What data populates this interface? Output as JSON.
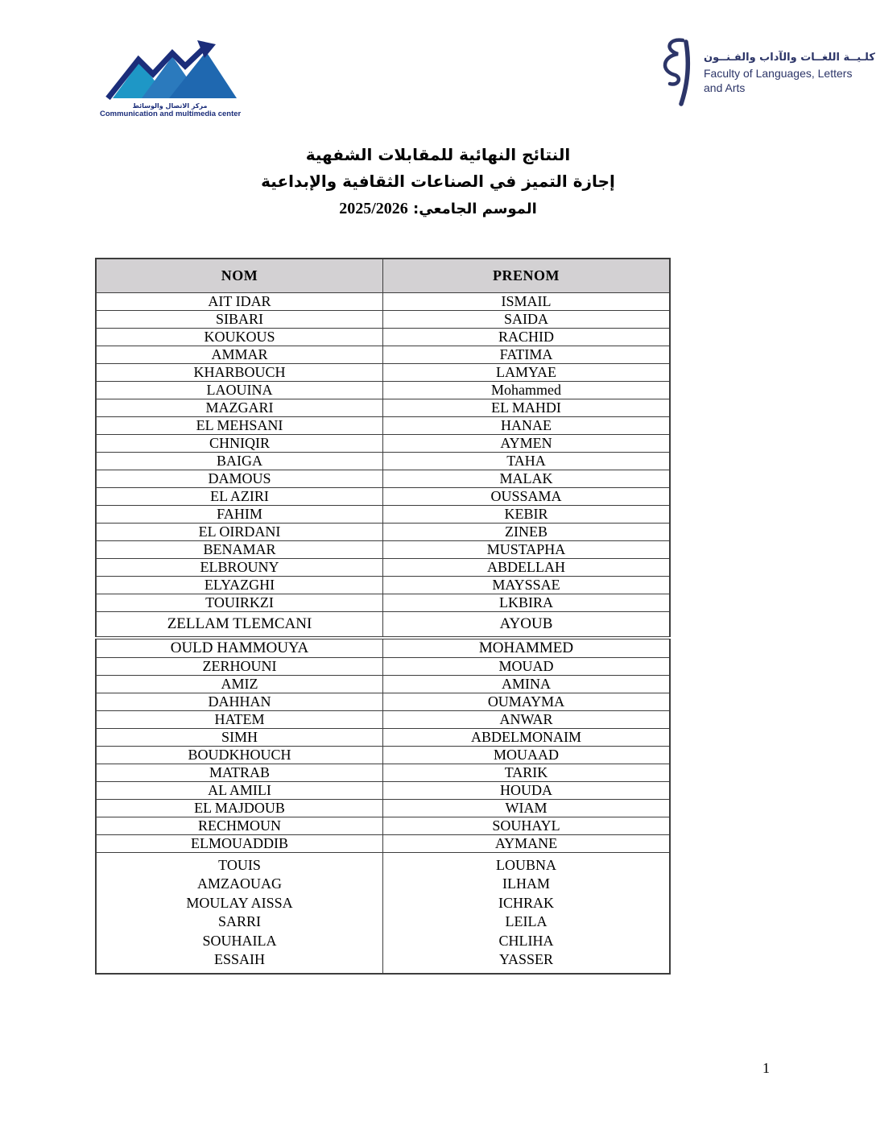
{
  "header": {
    "left_logo": {
      "arabic": "مركز الاتصال والوسائط",
      "english": "Communication and multimedia center",
      "colors": {
        "mountain_left": "#1e97c6",
        "mountain_mid": "#2b7abd",
        "mountain_right": "#1f68b0",
        "zigzag": "#1b2d7a",
        "text": "#1b2d7a"
      }
    },
    "right_logo": {
      "arabic": "كلـيــة اللغــات والآداب والفـنــون",
      "english_line1": "Faculty of Languages, Letters",
      "english_line2": "and Arts",
      "color": "#2c3568"
    }
  },
  "title": {
    "line1": "النتائج النهائية للمقابلات الشفهية",
    "line2": "إجازة التميز في الصناعات الثقافية والإبداعية",
    "line3_label": "الموسم الجامعي:",
    "line3_value": "2025/2026"
  },
  "table": {
    "columns": [
      "NOM",
      "PRENOM"
    ],
    "rows": [
      {
        "nom": "AIT IDAR",
        "prenom": "ISMAIL"
      },
      {
        "nom": "SIBARI",
        "prenom": "SAIDA"
      },
      {
        "nom": "KOUKOUS",
        "prenom": "RACHID"
      },
      {
        "nom": "AMMAR",
        "prenom": "FATIMA"
      },
      {
        "nom": "KHARBOUCH",
        "prenom": "LAMYAE"
      },
      {
        "nom": "LAOUINA",
        "prenom": "Mohammed"
      },
      {
        "nom": "MAZGARI",
        "prenom": "EL MAHDI"
      },
      {
        "nom": "EL MEHSANI",
        "prenom": "HANAE"
      },
      {
        "nom": "CHNIQIR",
        "prenom": "AYMEN"
      },
      {
        "nom": "BAIGA",
        "prenom": "TAHA"
      },
      {
        "nom": "DAMOUS",
        "prenom": "MALAK"
      },
      {
        "nom": "EL AZIRI",
        "prenom": "OUSSAMA"
      },
      {
        "nom": "FAHIM",
        "prenom": "KEBIR"
      },
      {
        "nom": "EL OIRDANI",
        "prenom": "ZINEB"
      },
      {
        "nom": "BENAMAR",
        "prenom": "MUSTAPHA"
      },
      {
        "nom": "ELBROUNY",
        "prenom": "ABDELLAH"
      },
      {
        "nom": "ELYAZGHI",
        "prenom": "MAYSSAE"
      },
      {
        "nom": "TOUIRKZI",
        "prenom": "LKBIRA"
      },
      {
        "nom": "ZELLAM TLEMCANI",
        "prenom": "AYOUB",
        "tall": true
      },
      {
        "nom": "OULD HAMMOUYA",
        "prenom": "MOHAMMED",
        "large": true
      },
      {
        "nom": "ZERHOUNI",
        "prenom": "MOUAD"
      },
      {
        "nom": "AMIZ",
        "prenom": "AMINA"
      },
      {
        "nom": "DAHHAN",
        "prenom": "OUMAYMA"
      },
      {
        "nom": "HATEM",
        "prenom": "ANWAR"
      },
      {
        "nom": "SIMH",
        "prenom": "ABDELMONAIM"
      },
      {
        "nom": "BOUDKHOUCH",
        "prenom": "MOUAAD"
      },
      {
        "nom": "MATRAB",
        "prenom": "TARIK"
      },
      {
        "nom": "AL AMILI",
        "prenom": "HOUDA"
      },
      {
        "nom": "EL MAJDOUB",
        "prenom": "WIAM"
      },
      {
        "nom": "RECHMOUN",
        "prenom": "SOUHAYL"
      },
      {
        "nom": "ELMOUADDIB",
        "prenom": "AYMANE"
      }
    ],
    "merged_rows": [
      {
        "nom": "TOUIS",
        "prenom": "LOUBNA"
      },
      {
        "nom": "AMZAOUAG",
        "prenom": "ILHAM"
      },
      {
        "nom": "MOULAY AISSA",
        "prenom": "ICHRAK"
      },
      {
        "nom": "SARRI",
        "prenom": "LEILA"
      },
      {
        "nom": "SOUHAILA",
        "prenom": "CHLIHA"
      },
      {
        "nom": "ESSAIH",
        "prenom": "YASSER"
      }
    ]
  },
  "page": {
    "number": "1"
  }
}
